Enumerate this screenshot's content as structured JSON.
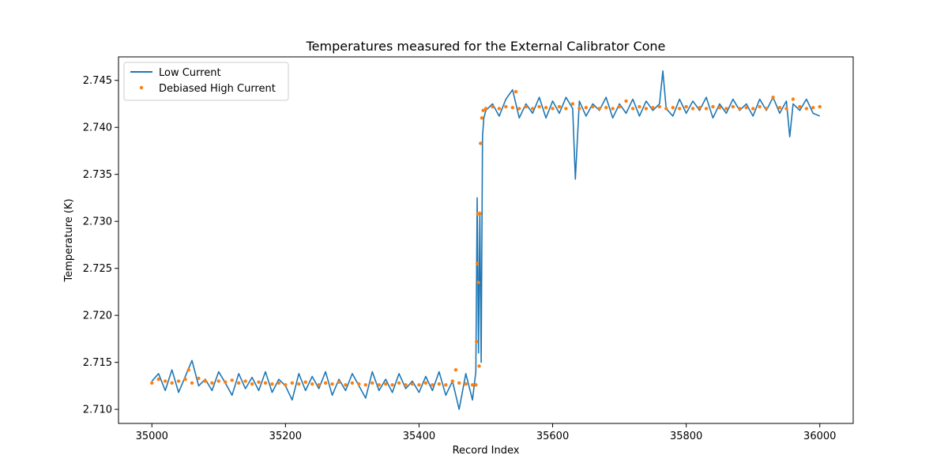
{
  "chart_data": {
    "type": "line",
    "title": "Temperatures measured for the External Calibrator Cone",
    "xlabel": "Record Index",
    "ylabel": "Temperature (K)",
    "xlim": [
      34950,
      36050
    ],
    "ylim": [
      2.7085,
      2.7475
    ],
    "xticks": [
      35000,
      35200,
      35400,
      35600,
      35800,
      36000
    ],
    "yticks": [
      2.71,
      2.715,
      2.72,
      2.725,
      2.73,
      2.735,
      2.74,
      2.745
    ],
    "grid": false,
    "legend_position": "upper-left",
    "colors": {
      "low_current": "#1f77b4",
      "high_current": "#ff7f0e"
    },
    "series": [
      {
        "name": "Low Current",
        "style": "line",
        "x": [
          35000,
          35010,
          35020,
          35030,
          35040,
          35050,
          35060,
          35070,
          35080,
          35090,
          35100,
          35110,
          35120,
          35130,
          35140,
          35150,
          35160,
          35170,
          35180,
          35190,
          35200,
          35210,
          35220,
          35230,
          35240,
          35250,
          35260,
          35270,
          35280,
          35290,
          35300,
          35310,
          35320,
          35330,
          35340,
          35350,
          35360,
          35370,
          35380,
          35390,
          35400,
          35410,
          35420,
          35430,
          35440,
          35450,
          35460,
          35470,
          35480,
          35485,
          35487,
          35489,
          35491,
          35493,
          35495,
          35497,
          35500,
          35510,
          35520,
          35530,
          35540,
          35550,
          35560,
          35570,
          35580,
          35590,
          35600,
          35610,
          35620,
          35630,
          35634,
          35640,
          35650,
          35660,
          35670,
          35680,
          35690,
          35700,
          35710,
          35720,
          35730,
          35740,
          35750,
          35760,
          35765,
          35770,
          35780,
          35790,
          35800,
          35810,
          35820,
          35830,
          35840,
          35850,
          35860,
          35870,
          35880,
          35890,
          35900,
          35910,
          35920,
          35930,
          35940,
          35950,
          35955,
          35960,
          35970,
          35980,
          35990,
          36000
        ],
        "y": [
          2.713,
          2.7138,
          2.712,
          2.7142,
          2.7118,
          2.7135,
          2.7152,
          2.7125,
          2.7132,
          2.712,
          2.714,
          2.7128,
          2.7115,
          2.7138,
          2.7122,
          2.7134,
          2.712,
          2.714,
          2.7118,
          2.7132,
          2.7125,
          2.711,
          2.7138,
          2.712,
          2.7135,
          2.7122,
          2.714,
          2.7115,
          2.7132,
          2.712,
          2.7138,
          2.7125,
          2.7112,
          2.714,
          2.712,
          2.7132,
          2.7118,
          2.7138,
          2.7122,
          2.713,
          2.7118,
          2.7135,
          2.712,
          2.714,
          2.7115,
          2.713,
          2.71,
          2.7138,
          2.711,
          2.714,
          2.7325,
          2.716,
          2.731,
          2.715,
          2.739,
          2.741,
          2.7418,
          2.7425,
          2.7412,
          2.743,
          2.744,
          2.741,
          2.7425,
          2.7415,
          2.7432,
          2.741,
          2.7428,
          2.7415,
          2.7432,
          2.742,
          2.7345,
          2.7428,
          2.7412,
          2.7425,
          2.7418,
          2.7432,
          2.741,
          2.7425,
          2.7415,
          2.743,
          2.7412,
          2.7428,
          2.7418,
          2.7425,
          2.746,
          2.742,
          2.7412,
          2.743,
          2.7415,
          2.7428,
          2.7418,
          2.7432,
          2.741,
          2.7425,
          2.7415,
          2.743,
          2.7418,
          2.7425,
          2.7412,
          2.743,
          2.7418,
          2.7432,
          2.7415,
          2.7428,
          2.739,
          2.7425,
          2.7418,
          2.743,
          2.7415,
          2.7412
        ]
      },
      {
        "name": "Debiased High Current",
        "style": "scatter",
        "x": [
          35000,
          35010,
          35020,
          35030,
          35040,
          35050,
          35055,
          35060,
          35070,
          35080,
          35090,
          35100,
          35110,
          35120,
          35130,
          35140,
          35150,
          35160,
          35170,
          35180,
          35190,
          35200,
          35210,
          35220,
          35230,
          35240,
          35250,
          35260,
          35270,
          35280,
          35290,
          35300,
          35310,
          35320,
          35330,
          35340,
          35350,
          35360,
          35370,
          35380,
          35390,
          35400,
          35410,
          35420,
          35430,
          35440,
          35450,
          35455,
          35460,
          35470,
          35480,
          35485,
          35486,
          35487,
          35488,
          35489,
          35490,
          35491,
          35492,
          35494,
          35496,
          35500,
          35510,
          35520,
          35530,
          35540,
          35545,
          35550,
          35560,
          35570,
          35580,
          35590,
          35600,
          35610,
          35620,
          35630,
          35640,
          35650,
          35660,
          35670,
          35680,
          35690,
          35700,
          35710,
          35720,
          35730,
          35740,
          35750,
          35760,
          35770,
          35780,
          35790,
          35800,
          35810,
          35820,
          35830,
          35840,
          35850,
          35860,
          35870,
          35880,
          35890,
          35900,
          35910,
          35920,
          35930,
          35940,
          35950,
          35960,
          35970,
          35980,
          35990,
          36000
        ],
        "y": [
          2.7128,
          2.7132,
          2.713,
          2.7128,
          2.713,
          2.7132,
          2.7142,
          2.7128,
          2.7133,
          2.713,
          2.7128,
          2.713,
          2.7129,
          2.7131,
          2.7128,
          2.713,
          2.7127,
          2.7129,
          2.7128,
          2.7127,
          2.7128,
          2.7126,
          2.7128,
          2.7127,
          2.7129,
          2.7127,
          2.7126,
          2.7128,
          2.7127,
          2.7129,
          2.7126,
          2.7128,
          2.7127,
          2.7126,
          2.7128,
          2.7126,
          2.7127,
          2.7126,
          2.7128,
          2.7126,
          2.7127,
          2.7126,
          2.7128,
          2.7126,
          2.7127,
          2.7126,
          2.713,
          2.7142,
          2.7128,
          2.7127,
          2.7126,
          2.7126,
          2.7172,
          2.7255,
          2.7308,
          2.7235,
          2.7146,
          2.7308,
          2.7383,
          2.741,
          2.7418,
          2.742,
          2.7422,
          2.742,
          2.7422,
          2.7421,
          2.7438,
          2.742,
          2.7422,
          2.742,
          2.7422,
          2.7421,
          2.742,
          2.7422,
          2.742,
          2.7425,
          2.742,
          2.7421,
          2.7422,
          2.742,
          2.7421,
          2.742,
          2.7422,
          2.7428,
          2.742,
          2.7422,
          2.742,
          2.7421,
          2.7422,
          2.742,
          2.7421,
          2.742,
          2.7422,
          2.742,
          2.7421,
          2.742,
          2.7422,
          2.7421,
          2.742,
          2.7422,
          2.742,
          2.7421,
          2.742,
          2.7422,
          2.742,
          2.7432,
          2.7421,
          2.742,
          2.743,
          2.7422,
          2.742,
          2.7421,
          2.7422
        ]
      }
    ]
  }
}
